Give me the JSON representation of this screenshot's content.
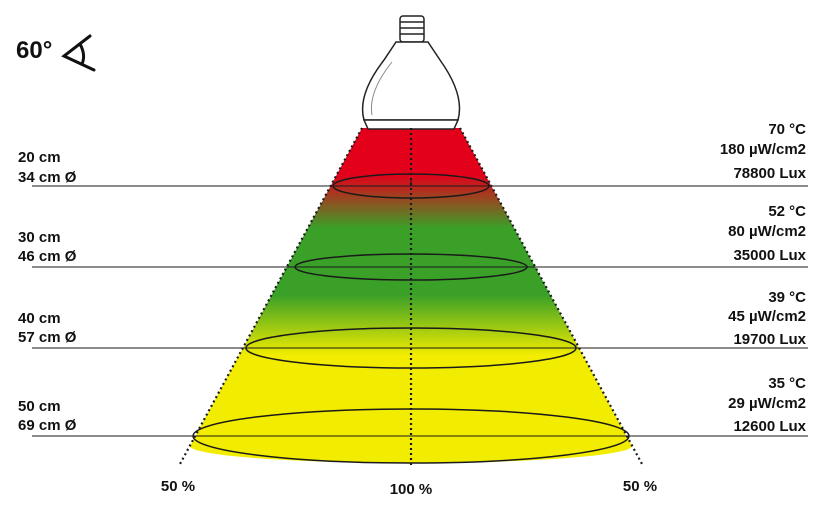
{
  "beam_angle": {
    "value": "60°",
    "icon": "beam-angle-icon"
  },
  "colors": {
    "hot": "#e3001b",
    "mid": "#3aa028",
    "cool": "#f2ec00",
    "line": "#1a1a1a"
  },
  "levels": [
    {
      "distance": "20 cm",
      "diameter": "34 cm Ø",
      "temperature": "70 °C",
      "uv": "180 µW/cm2",
      "lux": "78800 Lux"
    },
    {
      "distance": "30 cm",
      "diameter": "46 cm Ø",
      "temperature": "52 °C",
      "uv": "80 µW/cm2",
      "lux": "35000 Lux"
    },
    {
      "distance": "40 cm",
      "diameter": "57 cm Ø",
      "temperature": "39 °C",
      "uv": "45 µW/cm2",
      "lux": "19700 Lux"
    },
    {
      "distance": "50 cm",
      "diameter": "69 cm Ø",
      "temperature": "35 °C",
      "uv": "29 µW/cm2",
      "lux": "12600 Lux"
    }
  ],
  "intensity": {
    "left": "50 %",
    "center": "100 %",
    "right": "50 %"
  }
}
